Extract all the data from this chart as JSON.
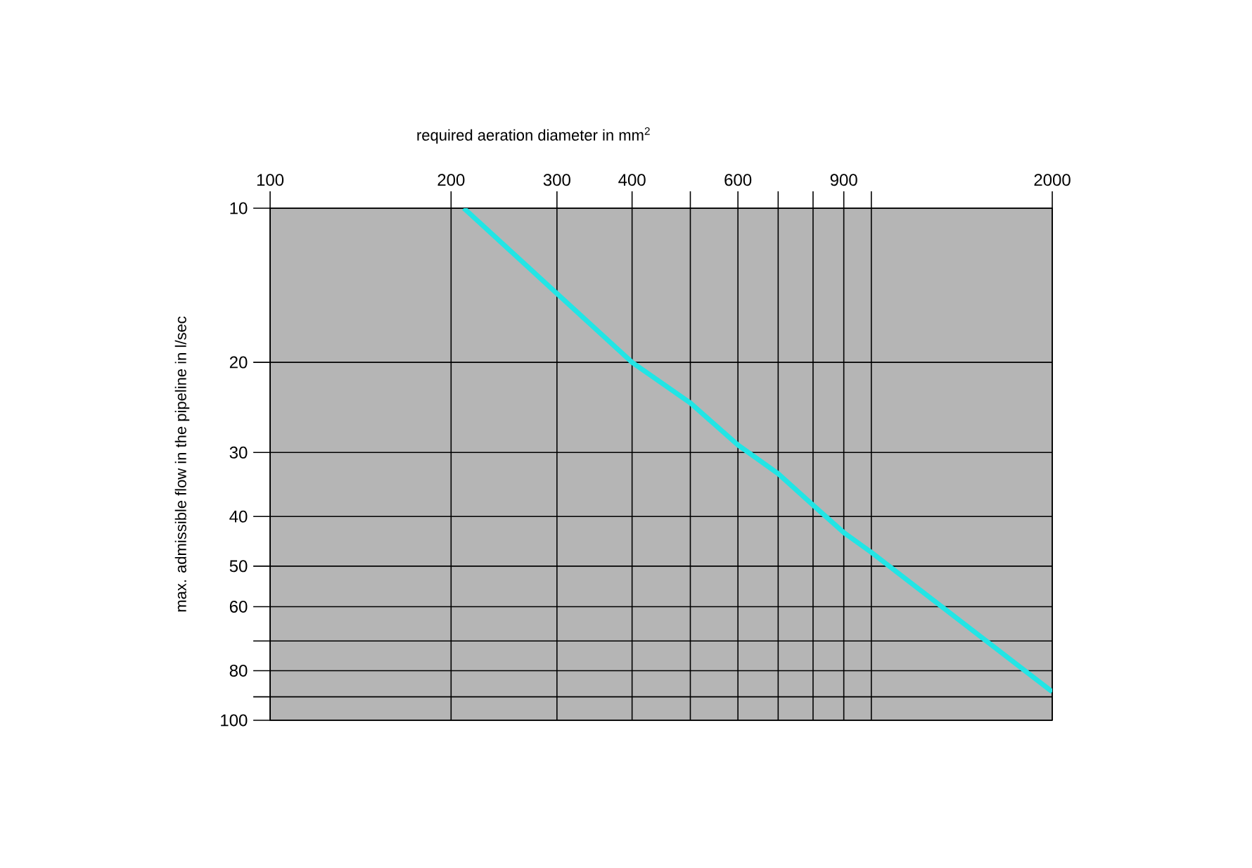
{
  "chart_data": {
    "type": "line",
    "xlabel": "required aeration diameter in mm$^{2}$",
    "ylabel": "max. admissible flow in the pipeline in l/sec",
    "x": [
      210,
      400,
      500,
      600,
      700,
      800,
      900,
      1000,
      2000
    ],
    "values": [
      10,
      20,
      24,
      29,
      33,
      38,
      43,
      47,
      88
    ],
    "color": "#22e5e5",
    "line_style": "solid",
    "xlim": [
      100,
      2000
    ],
    "ylim": [
      100,
      10
    ],
    "log": "xy",
    "grid": true,
    "xticks": [
      100,
      200,
      300,
      400,
      {
        "value": 500,
        "label": null
      },
      600,
      {
        "value": 700,
        "label": null
      },
      {
        "value": 800,
        "label": null
      },
      900,
      {
        "value": 1000,
        "label": null
      },
      2000
    ],
    "yticks": [
      10,
      20,
      30,
      40,
      50,
      60,
      {
        "value": 70,
        "label": null
      },
      80,
      {
        "value": 90,
        "label": null
      },
      100
    ]
  }
}
